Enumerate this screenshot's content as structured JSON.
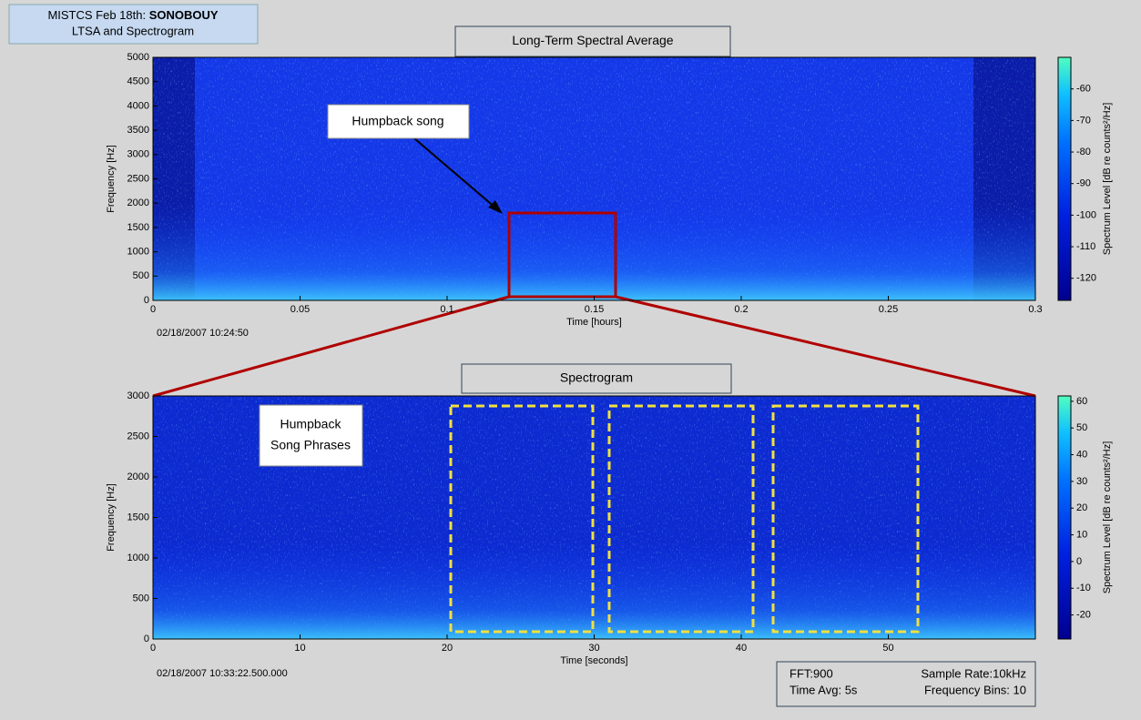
{
  "header": {
    "prefix": "MISTCS Feb 18th:",
    "bold": "SONOBOUY",
    "subtitle": "LTSA and Spectrogram"
  },
  "chart_data": [
    {
      "type": "spectrogram",
      "title": "Long-Term Spectral Average",
      "xlabel": "Time [hours]",
      "ylabel": "Frequency [Hz]",
      "xlim": [
        0,
        0.3
      ],
      "xticks": [
        0,
        0.05,
        0.1,
        0.15,
        0.2,
        0.25,
        0.3
      ],
      "ylim": [
        0,
        5000
      ],
      "yticks": [
        0,
        500,
        1000,
        1500,
        2000,
        2500,
        3000,
        3500,
        4000,
        4500,
        5000
      ],
      "colorbar_label": "Spectrum Level [dB re counts²/Hz]",
      "clim": [
        -127,
        -50
      ],
      "cticks": [
        -120,
        -110,
        -100,
        -90,
        -80,
        -70,
        -60
      ],
      "start_time": "02/18/2007 10:24:50",
      "annotation": [
        "Humpback song"
      ]
    },
    {
      "type": "spectrogram",
      "title": "Spectrogram",
      "xlabel": "Time [seconds]",
      "ylabel": "Frequency [Hz]",
      "xlim": [
        0,
        60
      ],
      "xticks": [
        0,
        10,
        20,
        30,
        40,
        50
      ],
      "ylim": [
        0,
        3000
      ],
      "yticks": [
        0,
        500,
        1000,
        1500,
        2000,
        2500,
        3000
      ],
      "colorbar_label": "Spectrum Level [dB re counts²/Hz]",
      "clim": [
        -29,
        62
      ],
      "cticks": [
        -20,
        -10,
        0,
        10,
        20,
        30,
        40,
        50,
        60
      ],
      "start_time": "02/18/2007 10:33:22.500.000",
      "annotation": [
        "Humpback",
        "Song Phrases"
      ]
    }
  ],
  "info": {
    "fft": "FFT:900",
    "sample_rate": "Sample Rate:10kHz",
    "time_avg": "Time Avg: 5s",
    "freq_bins": "Frequency Bins: 10"
  }
}
